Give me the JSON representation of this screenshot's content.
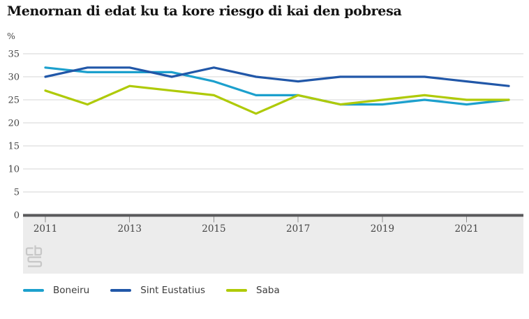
{
  "title": "Menornan di edat ku ta kore riesgo di kai den pobresa",
  "unit_label": "%",
  "chart_data": {
    "type": "line",
    "x": [
      2011,
      2012,
      2013,
      2014,
      2015,
      2016,
      2017,
      2018,
      2019,
      2020,
      2021,
      2022
    ],
    "x_tick_labels": [
      "2011",
      "2013",
      "2015",
      "2017",
      "2019",
      "2021"
    ],
    "y_ticks": [
      0,
      5,
      10,
      15,
      20,
      25,
      30,
      35
    ],
    "ylim": [
      0,
      35
    ],
    "ylabel": "%",
    "grid": true,
    "legend_position": "bottom",
    "series": [
      {
        "name": "Boneiru",
        "color": "#1ca0cd",
        "values": [
          32,
          31,
          31,
          31,
          29,
          26,
          26,
          24,
          24,
          25,
          24,
          25
        ]
      },
      {
        "name": "Sint Eustatius",
        "color": "#2157a8",
        "values": [
          30,
          32,
          32,
          30,
          32,
          30,
          29,
          30,
          30,
          30,
          29,
          28
        ]
      },
      {
        "name": "Saba",
        "color": "#afca08",
        "values": [
          27,
          24,
          28,
          27,
          26,
          22,
          26,
          24,
          25,
          26,
          25,
          25
        ]
      }
    ]
  },
  "icons": {
    "logo": "cbs-logo"
  }
}
